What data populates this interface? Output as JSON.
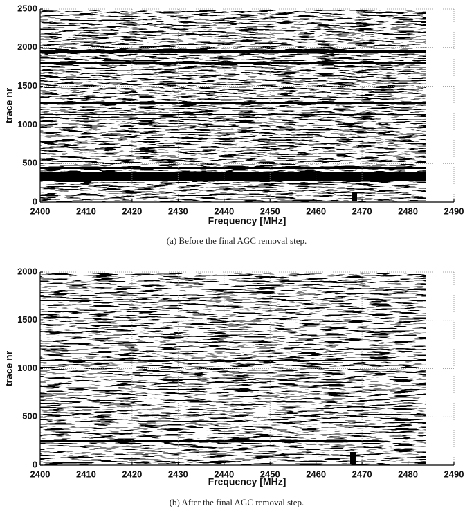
{
  "chart_data": [
    {
      "type": "image",
      "caption": "(a) Before the final AGC removal step.",
      "x_label": "Frequency [MHz]",
      "y_label": "trace nr",
      "xlim": [
        2400,
        2490
      ],
      "xticks": [
        2400,
        2410,
        2420,
        2430,
        2440,
        2450,
        2460,
        2470,
        2480,
        2490
      ],
      "ylim": [
        0,
        2500
      ],
      "yticks": [
        0,
        500,
        1000,
        1500,
        2000,
        2500
      ],
      "grid": true
    },
    {
      "type": "image",
      "caption": "(b) After the final AGC removal step.",
      "x_label": "Frequency [MHz]",
      "y_label": "trace nr",
      "xlim": [
        2400,
        2490
      ],
      "xticks": [
        2400,
        2410,
        2420,
        2430,
        2440,
        2450,
        2460,
        2470,
        2480,
        2490
      ],
      "ylim": [
        0,
        2000
      ],
      "yticks": [
        0,
        500,
        1000,
        1500,
        2000
      ],
      "grid": true
    }
  ]
}
